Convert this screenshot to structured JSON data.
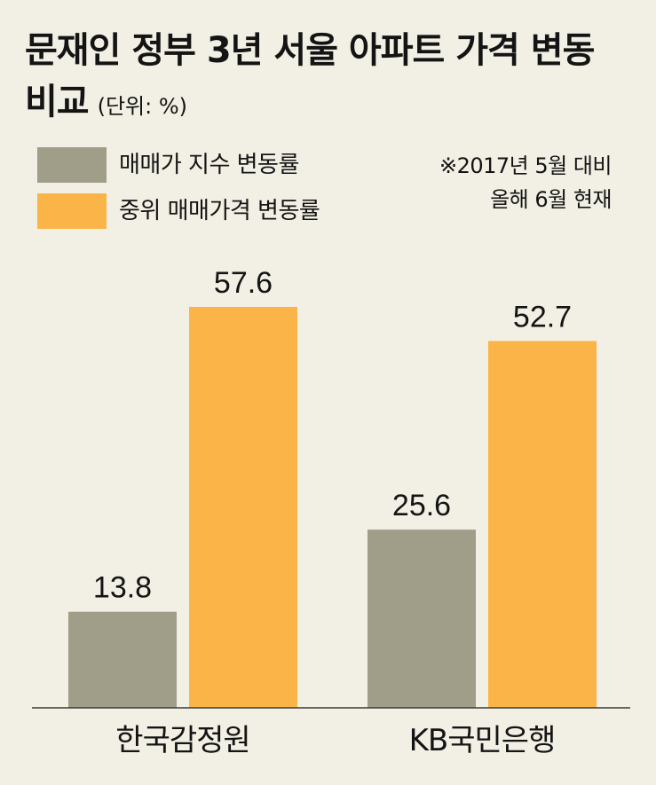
{
  "title": {
    "main": "문재인 정부 3년 서울 아파트 가격 변동 비교",
    "unit": "(단위: %)"
  },
  "note": {
    "line1": "※2017년 5월 대비",
    "line2": "올해 6월 현재"
  },
  "colors": {
    "background": "#f2efe4",
    "series1": "#a09d89",
    "series2": "#fbb447",
    "baseline": "#3a3a3a",
    "text": "#141414"
  },
  "chart_data": {
    "type": "bar",
    "title": "문재인 정부 3년 서울 아파트 가격 변동 비교",
    "unit_label": "(단위: %)",
    "categories": [
      "한국감정원",
      "KB국민은행"
    ],
    "series": [
      {
        "name": "매매가 지수 변동률",
        "values": [
          13.8,
          25.6
        ]
      },
      {
        "name": "중위 매매가격 변동률",
        "values": [
          57.6,
          52.7
        ]
      }
    ],
    "data_labels": [
      [
        "13.8",
        "25.6"
      ],
      [
        "57.6",
        "52.7"
      ]
    ],
    "ylim": [
      0,
      65
    ],
    "grid": false,
    "legend_position": "top-left"
  }
}
